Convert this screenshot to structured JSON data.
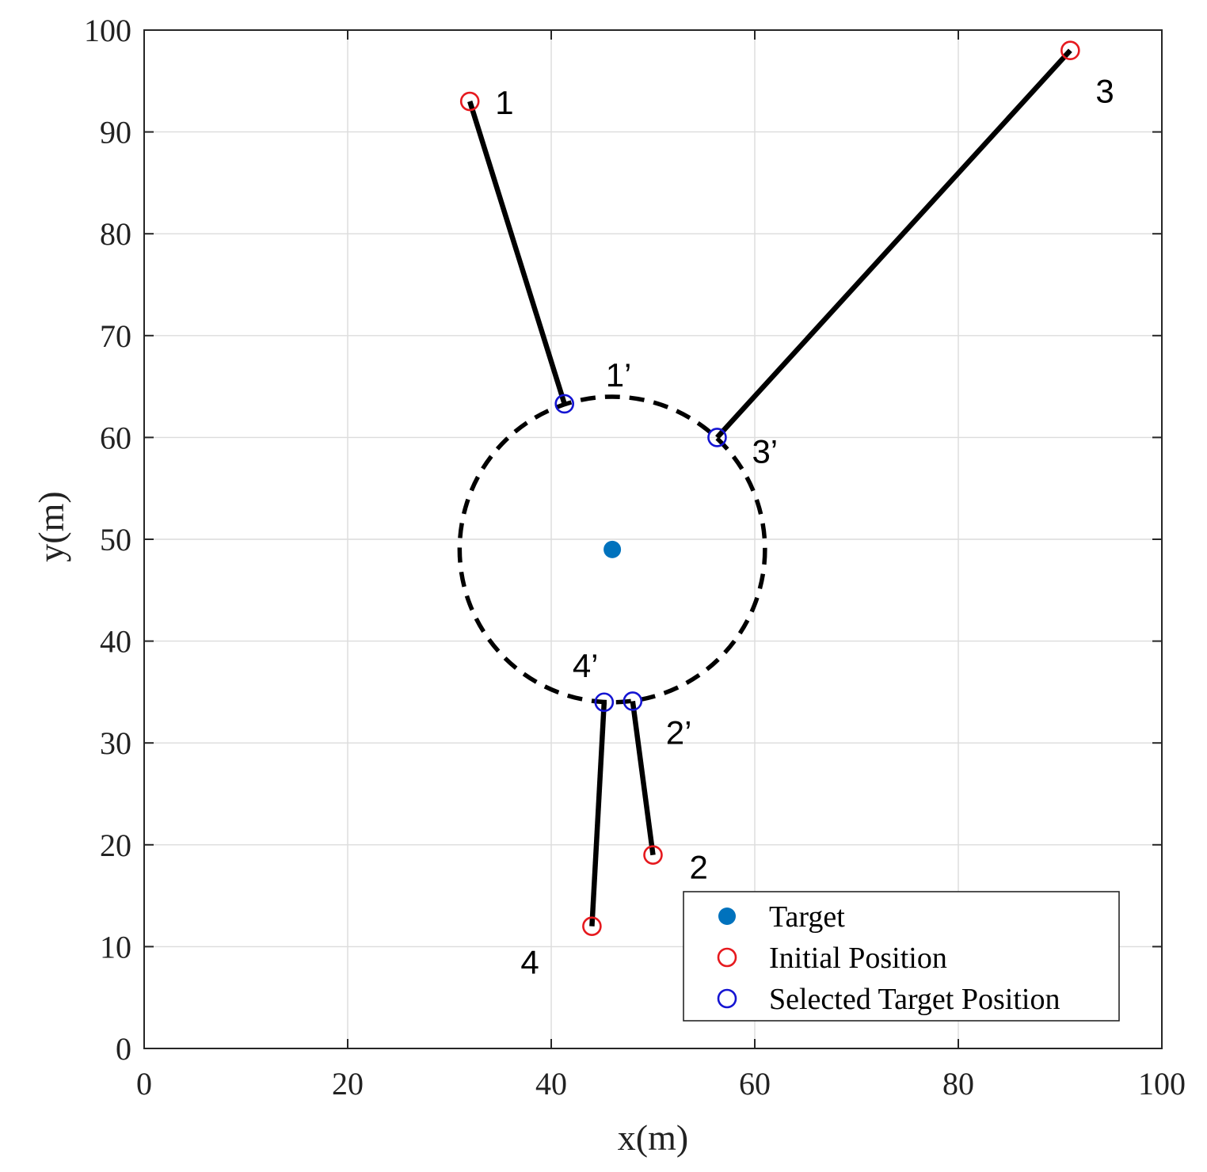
{
  "chart_data": {
    "type": "scatter",
    "xlabel": "x(m)",
    "ylabel": "y(m)",
    "xlim": [
      0,
      100
    ],
    "ylim": [
      0,
      100
    ],
    "xticks": [
      0,
      20,
      40,
      60,
      80,
      100
    ],
    "yticks": [
      0,
      10,
      20,
      30,
      40,
      50,
      60,
      70,
      80,
      90,
      100
    ],
    "grid": true,
    "legend_position": "bottom-right",
    "colors": {
      "target": "#0072BD",
      "initial": "#E6191E",
      "selected": "#1414D2",
      "path": "#000000"
    },
    "target": {
      "label": "Target",
      "x": 46,
      "y": 49
    },
    "circle": {
      "center": [
        46,
        49
      ],
      "radius": 15,
      "style": "dashed"
    },
    "initial_positions": {
      "label": "Initial Position",
      "points": [
        {
          "id": "1",
          "x": 32,
          "y": 93
        },
        {
          "id": "2",
          "x": 50,
          "y": 19
        },
        {
          "id": "3",
          "x": 91,
          "y": 98
        },
        {
          "id": "4",
          "x": 44,
          "y": 12
        }
      ]
    },
    "selected_positions": {
      "label": "Selected Target Position",
      "points": [
        {
          "id": "1’",
          "x": 41.3,
          "y": 63.3
        },
        {
          "id": "2’",
          "x": 48,
          "y": 34.1
        },
        {
          "id": "3’",
          "x": 56.3,
          "y": 60
        },
        {
          "id": "4’",
          "x": 45.2,
          "y": 34
        }
      ]
    },
    "paths": [
      {
        "from": "1",
        "to": "1’"
      },
      {
        "from": "2",
        "to": "2’"
      },
      {
        "from": "3",
        "to": "3’"
      },
      {
        "from": "4",
        "to": "4’"
      }
    ],
    "legend": [
      "Target",
      "Initial Position",
      "Selected Target Position"
    ]
  }
}
